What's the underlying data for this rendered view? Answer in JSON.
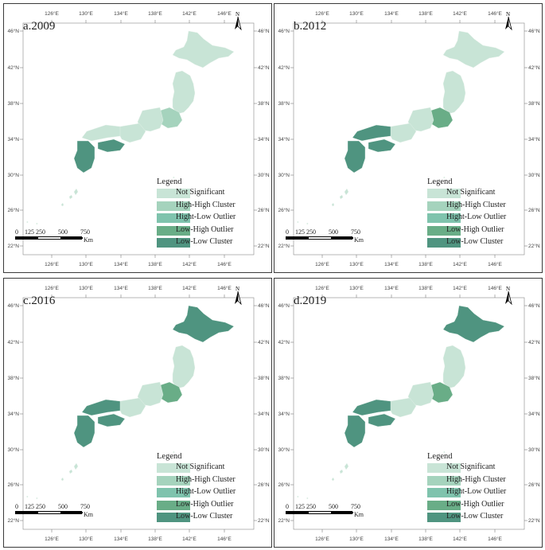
{
  "panels": [
    {
      "title": "a.2009"
    },
    {
      "title": "b.2012"
    },
    {
      "title": "c.2016"
    },
    {
      "title": "d.2019"
    }
  ],
  "lon_labels": [
    "126°E",
    "130°E",
    "134°E",
    "138°E",
    "142°E",
    "146°E"
  ],
  "lat_labels": [
    "46°N",
    "42°N",
    "38°N",
    "34°N",
    "30°N",
    "26°N",
    "22°N"
  ],
  "north_label": "N",
  "legend": {
    "title": "Legend",
    "items": [
      {
        "label": "Not Significant",
        "color": "#c8e4d6"
      },
      {
        "label": "High-High Cluster",
        "color": "#a5d3bd"
      },
      {
        "label": "Hight-Low Outlier",
        "color": "#7fc3ad"
      },
      {
        "label": "Low-High Outlier",
        "color": "#69ad87"
      },
      {
        "label": "Low-Low Cluster",
        "color": "#4f9480"
      }
    ]
  },
  "scale": {
    "labels": [
      "0",
      "125",
      "250",
      "500",
      "750"
    ],
    "unit": "Km"
  }
}
